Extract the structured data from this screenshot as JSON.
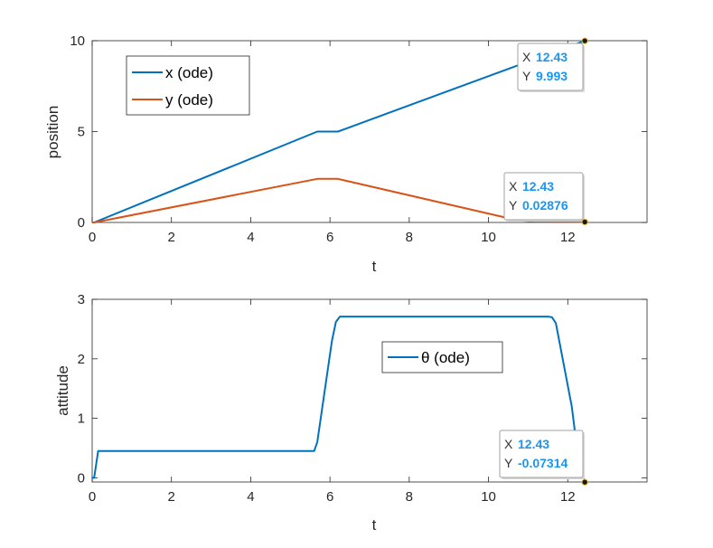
{
  "colors": {
    "x": "#0072BD",
    "y": "#D95319",
    "theta": "#0072BD",
    "axis": "#262626",
    "datatip_value": "#1a96f0"
  },
  "chart_data": [
    {
      "type": "line",
      "xlabel": "t",
      "ylabel": "position",
      "xlim": [
        0,
        14
      ],
      "ylim": [
        0,
        10
      ],
      "xticks": [
        "0",
        "2",
        "4",
        "6",
        "8",
        "10",
        "12"
      ],
      "yticks": [
        "0",
        "5",
        "10"
      ],
      "grid": false,
      "legend_location": "northwest",
      "series": [
        {
          "name": "x (ode)",
          "x": [
            0,
            0.05,
            5.68,
            6.2,
            12.43
          ],
          "y": [
            0,
            0,
            5.0,
            5.0,
            9.993
          ]
        },
        {
          "name": "y (ode)",
          "x": [
            0,
            0.05,
            5.68,
            6.2,
            10.73,
            11.2,
            12.43
          ],
          "y": [
            0,
            0,
            2.4,
            2.4,
            0.12,
            0.05,
            0.02876
          ]
        }
      ],
      "datatips": [
        {
          "x_label": "X",
          "x_value": "12.43",
          "y_label": "Y",
          "y_value": "9.993",
          "x": 12.43,
          "y": 9.993
        },
        {
          "x_label": "X",
          "x_value": "12.43",
          "y_label": "Y",
          "y_value": "0.02876",
          "x": 12.43,
          "y": 0.02876
        }
      ]
    },
    {
      "type": "line",
      "xlabel": "t",
      "ylabel": "attitude",
      "xlim": [
        0,
        14
      ],
      "ylim": [
        -0.07,
        3
      ],
      "xticks": [
        "0",
        "2",
        "4",
        "6",
        "8",
        "10",
        "12"
      ],
      "yticks": [
        "0",
        "1",
        "2",
        "3"
      ],
      "grid": false,
      "legend_location": "center",
      "series": [
        {
          "name": "θ (ode)",
          "x": [
            0,
            0.05,
            0.15,
            5.6,
            5.68,
            6.05,
            6.15,
            6.25,
            11.5,
            11.6,
            11.7,
            12.1,
            12.25,
            12.43
          ],
          "y": [
            0,
            0,
            0.45,
            0.45,
            0.6,
            2.3,
            2.62,
            2.71,
            2.71,
            2.7,
            2.6,
            1.2,
            0.4,
            -0.07314
          ]
        }
      ],
      "datatips": [
        {
          "x_label": "X",
          "x_value": "12.43",
          "y_label": "Y",
          "y_value": "-0.07314",
          "x": 12.43,
          "y": -0.07314
        }
      ]
    }
  ]
}
